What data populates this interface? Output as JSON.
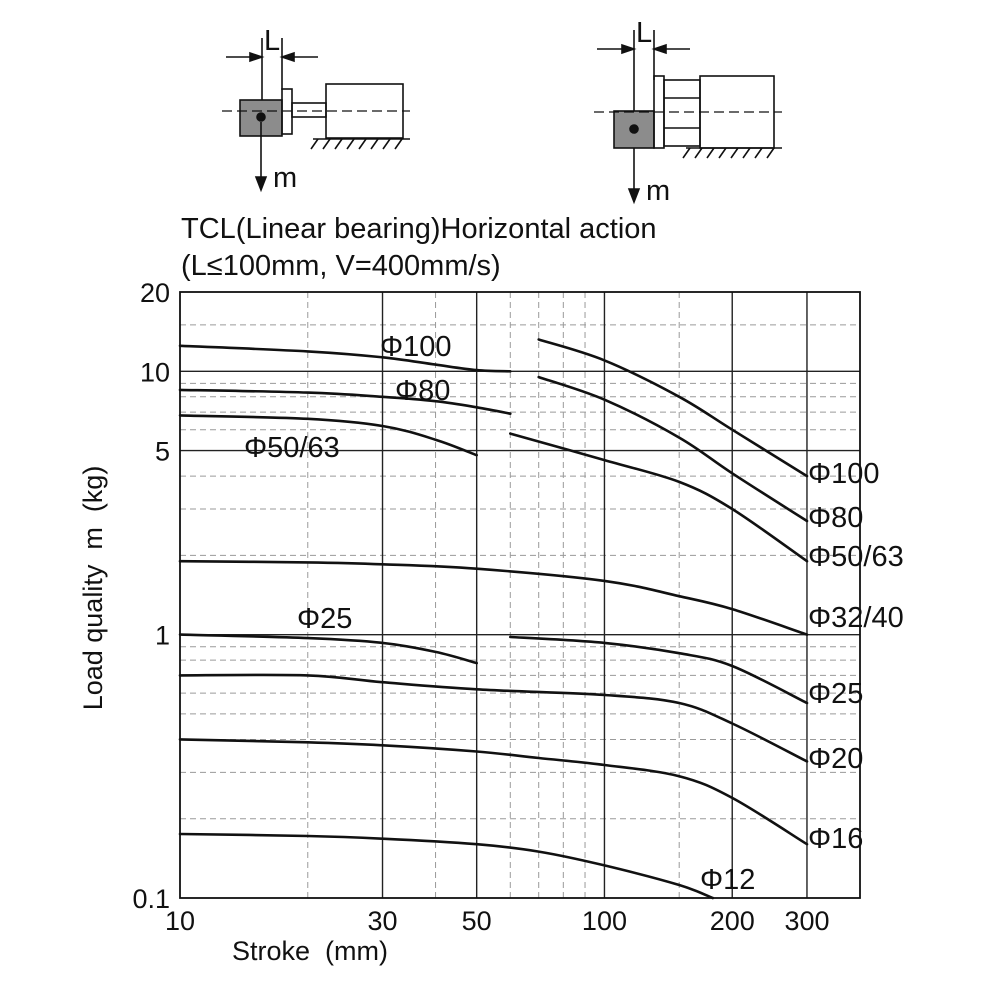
{
  "header": {
    "diagram_left": {
      "dimension_label": "L",
      "mass_label": "m"
    },
    "diagram_right": {
      "dimension_label": "L",
      "mass_label": "m"
    },
    "title_line1": "TCL(Linear bearing)Horizontal action",
    "title_line2": "(L≤100mm, V=400mm/s)"
  },
  "chart_data": {
    "type": "line",
    "title": "TCL(Linear bearing)Horizontal action",
    "subtitle": "(L≤100mm, V=400mm/s)",
    "xlabel": "Stroke  (mm)",
    "ylabel": "Load quality  m  (kg)",
    "x_scale": "log",
    "y_scale": "log",
    "xlim": [
      10,
      400
    ],
    "ylim": [
      0.1,
      20
    ],
    "x_ticks": [
      {
        "value": 10,
        "label": "10"
      },
      {
        "value": 30,
        "label": "30"
      },
      {
        "value": 50,
        "label": "50"
      },
      {
        "value": 100,
        "label": "100"
      },
      {
        "value": 200,
        "label": "200"
      },
      {
        "value": 300,
        "label": "300"
      }
    ],
    "y_ticks": [
      {
        "value": 0.1,
        "label": "0.1"
      },
      {
        "value": 1,
        "label": "1"
      },
      {
        "value": 5,
        "label": "5"
      },
      {
        "value": 10,
        "label": "10"
      },
      {
        "value": 20,
        "label": "20"
      }
    ],
    "grid": true,
    "series": [
      {
        "name": "Φ100",
        "segments": [
          [
            [
              10,
              12.5
            ],
            [
              20,
              11.9
            ],
            [
              30,
              11.3
            ],
            [
              40,
              10.6
            ],
            [
              50,
              10.1
            ],
            [
              60,
              10.0
            ]
          ],
          [
            [
              70,
              13.2
            ],
            [
              100,
              11.0
            ],
            [
              150,
              8.0
            ],
            [
              200,
              6.0
            ],
            [
              300,
              4.0
            ]
          ]
        ]
      },
      {
        "name": "Φ80",
        "segments": [
          [
            [
              10,
              8.5
            ],
            [
              20,
              8.3
            ],
            [
              30,
              8.0
            ],
            [
              40,
              7.7
            ],
            [
              50,
              7.3
            ],
            [
              60,
              6.9
            ]
          ],
          [
            [
              70,
              9.5
            ],
            [
              100,
              7.8
            ],
            [
              150,
              5.6
            ],
            [
              200,
              4.1
            ],
            [
              300,
              2.7
            ]
          ]
        ]
      },
      {
        "name": "Φ50/63",
        "segments": [
          [
            [
              10,
              6.8
            ],
            [
              20,
              6.6
            ],
            [
              30,
              6.2
            ],
            [
              40,
              5.5
            ],
            [
              50,
              4.8
            ]
          ],
          [
            [
              60,
              5.8
            ],
            [
              100,
              4.6
            ],
            [
              150,
              3.8
            ],
            [
              200,
              3.0
            ],
            [
              300,
              1.9
            ]
          ]
        ]
      },
      {
        "name": "Φ32/40",
        "segments": [
          [
            [
              10,
              1.9
            ],
            [
              20,
              1.88
            ],
            [
              30,
              1.85
            ],
            [
              50,
              1.78
            ],
            [
              100,
              1.6
            ],
            [
              150,
              1.4
            ],
            [
              200,
              1.25
            ],
            [
              300,
              1.0
            ]
          ]
        ]
      },
      {
        "name": "Φ25",
        "segments": [
          [
            [
              10,
              1.0
            ],
            [
              20,
              0.97
            ],
            [
              30,
              0.93
            ],
            [
              40,
              0.86
            ],
            [
              50,
              0.78
            ]
          ],
          [
            [
              60,
              0.98
            ],
            [
              100,
              0.93
            ],
            [
              150,
              0.85
            ],
            [
              200,
              0.76
            ],
            [
              300,
              0.55
            ]
          ]
        ]
      },
      {
        "name": "Φ20",
        "segments": [
          [
            [
              10,
              0.7
            ],
            [
              20,
              0.7
            ],
            [
              30,
              0.66
            ],
            [
              50,
              0.62
            ],
            [
              100,
              0.59
            ],
            [
              150,
              0.55
            ],
            [
              200,
              0.46
            ],
            [
              300,
              0.33
            ]
          ]
        ]
      },
      {
        "name": "Φ16",
        "segments": [
          [
            [
              10,
              0.4
            ],
            [
              20,
              0.39
            ],
            [
              30,
              0.38
            ],
            [
              50,
              0.36
            ],
            [
              70,
              0.34
            ],
            [
              100,
              0.32
            ],
            [
              150,
              0.29
            ],
            [
              200,
              0.24
            ],
            [
              300,
              0.16
            ]
          ]
        ]
      },
      {
        "name": "Φ12",
        "segments": [
          [
            [
              10,
              0.175
            ],
            [
              20,
              0.172
            ],
            [
              30,
              0.168
            ],
            [
              50,
              0.16
            ],
            [
              70,
              0.15
            ],
            [
              100,
              0.133
            ],
            [
              150,
              0.112
            ],
            [
              180,
              0.1
            ]
          ]
        ]
      }
    ]
  }
}
